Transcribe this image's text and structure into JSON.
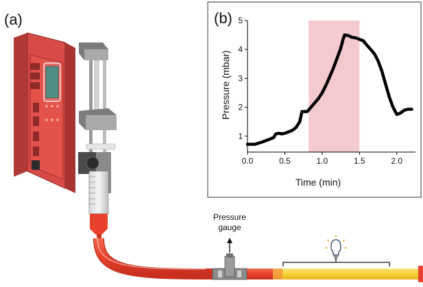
{
  "panels": {
    "a_label": "(a)",
    "b_label": "(b)"
  },
  "gauge": {
    "line1": "Pressure",
    "line2": "gauge"
  },
  "icons": {
    "syringe_pump": "syringe-pump-icon",
    "lightbulb": "lightbulb-icon",
    "pressure_sensor": "pressure-gauge-icon"
  },
  "colors": {
    "pump_body": "#d84a45",
    "pump_dark": "#b13a37",
    "display": "#4f8f86",
    "tube_red": "#e8412c",
    "tube_yellow": "#f7d236",
    "highlight": "#efb8bd"
  },
  "chart_data": {
    "type": "line",
    "xlabel": "Time (min)",
    "ylabel": "Pressure (mbar)",
    "xlim": [
      0.0,
      2.25
    ],
    "ylim": [
      0.45,
      5.0
    ],
    "xticks": [
      "0.0",
      "0.5",
      "1.0",
      "1.5",
      "2.0"
    ],
    "yticks": [
      "1",
      "2",
      "3",
      "4",
      "5"
    ],
    "highlight": [
      0.82,
      1.5
    ],
    "grid": false,
    "series": [
      {
        "x": [
          0.0,
          0.05,
          0.1,
          0.15,
          0.2,
          0.25,
          0.3,
          0.35,
          0.38,
          0.42,
          0.46,
          0.5,
          0.55,
          0.6,
          0.65,
          0.7,
          0.73,
          0.76,
          0.8,
          0.85,
          0.9,
          0.95,
          1.0,
          1.05,
          1.1,
          1.15,
          1.2,
          1.25,
          1.28,
          1.3,
          1.35,
          1.4,
          1.45,
          1.5,
          1.55,
          1.6,
          1.65,
          1.7,
          1.75,
          1.8,
          1.85,
          1.9,
          1.95,
          2.0,
          2.05,
          2.1,
          2.15,
          2.2
        ],
        "y": [
          0.72,
          0.72,
          0.72,
          0.76,
          0.8,
          0.85,
          0.9,
          0.95,
          1.08,
          1.1,
          1.08,
          1.1,
          1.15,
          1.2,
          1.3,
          1.5,
          1.85,
          1.85,
          1.85,
          2.0,
          2.15,
          2.3,
          2.5,
          2.75,
          3.05,
          3.35,
          3.7,
          4.05,
          4.35,
          4.5,
          4.48,
          4.42,
          4.4,
          4.35,
          4.3,
          4.15,
          4.0,
          3.85,
          3.6,
          3.25,
          2.8,
          2.35,
          2.0,
          1.75,
          1.8,
          1.9,
          1.93,
          1.93
        ]
      }
    ]
  }
}
